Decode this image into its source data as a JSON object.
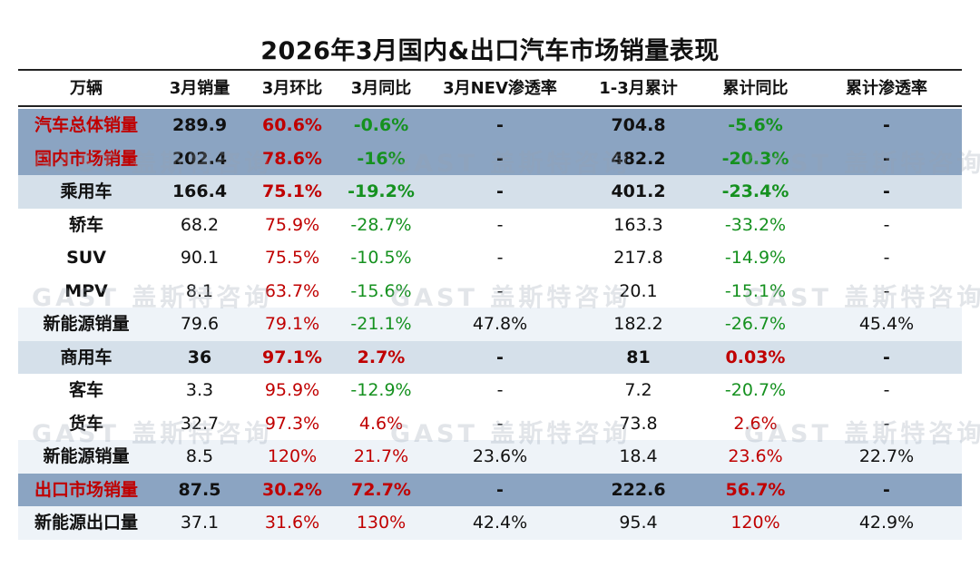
{
  "title": "2026年3月国内&出口汽车市场销量表现",
  "headers": [
    "万辆",
    "3月销量",
    "3月环比",
    "3月同比",
    "3月NEV渗透率",
    "1-3月累计",
    "累计同比",
    "累计渗透率"
  ],
  "watermark": "GAST 盖斯特咨询",
  "colors": {
    "up": "#c00000",
    "down": "#15911f",
    "band_dark": "#8ba4c2",
    "band_light": "#d5e0ea"
  },
  "rows": [
    {
      "label": "汽车总体销量",
      "v": [
        "289.9",
        "60.6%",
        "-0.6%",
        "-",
        "704.8",
        "-5.6%",
        "-"
      ]
    },
    {
      "label": "国内市场销量",
      "v": [
        "202.4",
        "78.6%",
        "-16%",
        "-",
        "482.2",
        "-20.3%",
        "-"
      ]
    },
    {
      "label": "乘用车",
      "v": [
        "166.4",
        "75.1%",
        "-19.2%",
        "-",
        "401.2",
        "-23.4%",
        "-"
      ]
    },
    {
      "label": "轿车",
      "v": [
        "68.2",
        "75.9%",
        "-28.7%",
        "-",
        "163.3",
        "-33.2%",
        "-"
      ]
    },
    {
      "label": "SUV",
      "v": [
        "90.1",
        "75.5%",
        "-10.5%",
        "-",
        "217.8",
        "-14.9%",
        "-"
      ]
    },
    {
      "label": "MPV",
      "v": [
        "8.1",
        "63.7%",
        "-15.6%",
        "-",
        "20.1",
        "-15.1%",
        "-"
      ]
    },
    {
      "label": "新能源销量",
      "v": [
        "79.6",
        "79.1%",
        "-21.1%",
        "47.8%",
        "182.2",
        "-26.7%",
        "45.4%"
      ]
    },
    {
      "label": "商用车",
      "v": [
        "36",
        "97.1%",
        "2.7%",
        "-",
        "81",
        "0.03%",
        "-"
      ]
    },
    {
      "label": "客车",
      "v": [
        "3.3",
        "95.9%",
        "-12.9%",
        "-",
        "7.2",
        "-20.7%",
        "-"
      ]
    },
    {
      "label": "货车",
      "v": [
        "32.7",
        "97.3%",
        "4.6%",
        "-",
        "73.8",
        "2.6%",
        "-"
      ]
    },
    {
      "label": "新能源销量",
      "v": [
        "8.5",
        "120%",
        "21.7%",
        "23.6%",
        "18.4",
        "23.6%",
        "22.7%"
      ]
    },
    {
      "label": "出口市场销量",
      "v": [
        "87.5",
        "30.2%",
        "72.7%",
        "-",
        "222.6",
        "56.7%",
        "-"
      ]
    },
    {
      "label": "新能源出口量",
      "v": [
        "37.1",
        "31.6%",
        "130%",
        "42.4%",
        "95.4",
        "120%",
        "42.9%"
      ]
    }
  ]
}
